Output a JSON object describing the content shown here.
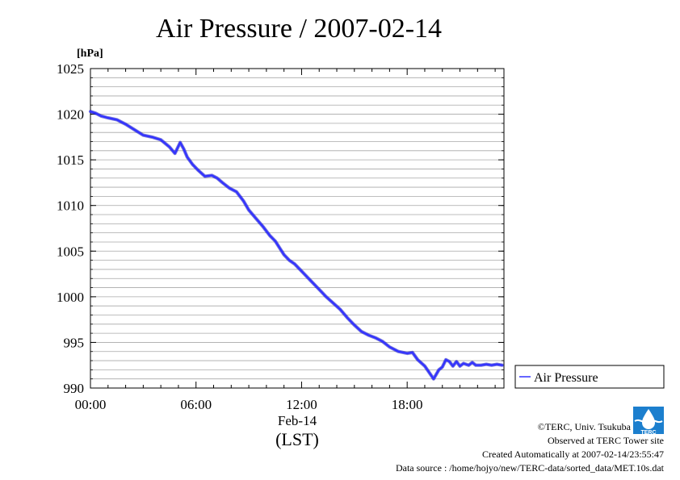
{
  "chart_data": {
    "type": "line",
    "title": "Air Pressure / 2007-02-14",
    "ylabel": "[hPa]",
    "xlabel_date": "Feb-14",
    "xlabel_tz": "(LST)",
    "x_unit": "hours",
    "xlim": [
      0,
      23.5
    ],
    "ylim": [
      990,
      1025
    ],
    "x_ticks": [
      0,
      6,
      12,
      18
    ],
    "x_tick_labels": [
      "00:00",
      "06:00",
      "12:00",
      "18:00"
    ],
    "y_ticks": [
      990,
      995,
      1000,
      1005,
      1010,
      1015,
      1020,
      1025
    ],
    "y_tick_labels": [
      "990",
      "995",
      "1000",
      "1005",
      "1010",
      "1015",
      "1020",
      "1025"
    ],
    "y_minor_step": 1,
    "grid": true,
    "legend_position": "right",
    "series": [
      {
        "name": "Air Pressure",
        "color": "#3333ff",
        "x": [
          0.0,
          0.3,
          0.6,
          1.0,
          1.5,
          2.0,
          2.5,
          3.0,
          3.5,
          4.0,
          4.5,
          4.8,
          5.1,
          5.3,
          5.5,
          5.8,
          6.1,
          6.5,
          6.9,
          7.2,
          7.5,
          7.9,
          8.3,
          8.7,
          9.0,
          9.4,
          9.8,
          10.2,
          10.5,
          10.8,
          11.0,
          11.3,
          11.6,
          11.9,
          12.2,
          12.5,
          12.8,
          13.1,
          13.4,
          13.8,
          14.2,
          14.6,
          15.0,
          15.4,
          15.8,
          16.2,
          16.6,
          17.0,
          17.5,
          18.0,
          18.3,
          18.6,
          19.0,
          19.5,
          19.8,
          20.0,
          20.2,
          20.4,
          20.6,
          20.8,
          21.0,
          21.2,
          21.5,
          21.7,
          21.9,
          22.2,
          22.5,
          22.8,
          23.1,
          23.4
        ],
        "values": [
          1020.3,
          1020.1,
          1019.8,
          1019.6,
          1019.4,
          1018.9,
          1018.3,
          1017.7,
          1017.5,
          1017.2,
          1016.4,
          1015.7,
          1016.9,
          1016.2,
          1015.3,
          1014.5,
          1013.9,
          1013.2,
          1013.3,
          1013.0,
          1012.5,
          1011.9,
          1011.5,
          1010.5,
          1009.5,
          1008.6,
          1007.7,
          1006.7,
          1006.1,
          1005.2,
          1004.6,
          1004.0,
          1003.6,
          1003.0,
          1002.4,
          1001.8,
          1001.2,
          1000.6,
          1000.0,
          999.3,
          998.6,
          997.7,
          996.9,
          996.2,
          995.8,
          995.5,
          995.1,
          994.5,
          994.0,
          993.8,
          993.9,
          993.1,
          992.4,
          991.0,
          992.0,
          992.3,
          993.1,
          992.9,
          992.4,
          992.9,
          992.4,
          992.7,
          992.5,
          992.8,
          992.5,
          992.5,
          992.6,
          992.5,
          992.6,
          992.5
        ]
      }
    ]
  },
  "legend": {
    "label": "Air Pressure"
  },
  "credits": {
    "copyright": "©TERC, Univ. Tsukuba",
    "observed": "Observed at TERC Tower site",
    "created": "Created Automatically at 2007-02-14/23:55:47",
    "source": "Data source : /home/hojyo/new/TERC-data/sorted_data/MET.10s.dat",
    "logo_text": "TERC"
  }
}
